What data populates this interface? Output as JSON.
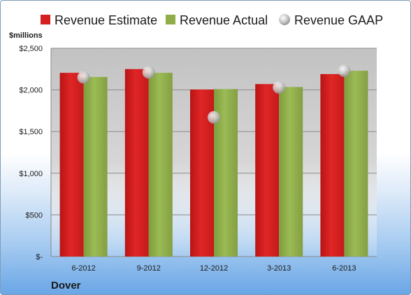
{
  "chart_data": {
    "type": "bar",
    "unit_label": "$millions",
    "company": "Dover",
    "categories": [
      "6-2012",
      "9-2012",
      "12-2012",
      "3-2013",
      "6-2013"
    ],
    "series": [
      {
        "name": "Revenue Estimate",
        "kind": "bar",
        "color": "#d42020",
        "values": [
          2205,
          2250,
          2005,
          2070,
          2190
        ]
      },
      {
        "name": "Revenue Actual",
        "kind": "bar",
        "color": "#8fae4a",
        "values": [
          2155,
          2205,
          2010,
          2035,
          2230
        ]
      },
      {
        "name": "Revenue GAAP",
        "kind": "marker",
        "color": "#b8b8b8",
        "values": [
          2150,
          2210,
          1670,
          2030,
          2230
        ]
      }
    ],
    "ylim": [
      0,
      2500
    ],
    "yticks": [
      {
        "value": 0,
        "label": "$-"
      },
      {
        "value": 500,
        "label": "$500"
      },
      {
        "value": 1000,
        "label": "$1,000"
      },
      {
        "value": 1500,
        "label": "$1,500"
      },
      {
        "value": 2000,
        "label": "$2,000"
      },
      {
        "value": 2500,
        "label": "$2,500"
      }
    ],
    "grid": true,
    "legend_position": "top"
  }
}
